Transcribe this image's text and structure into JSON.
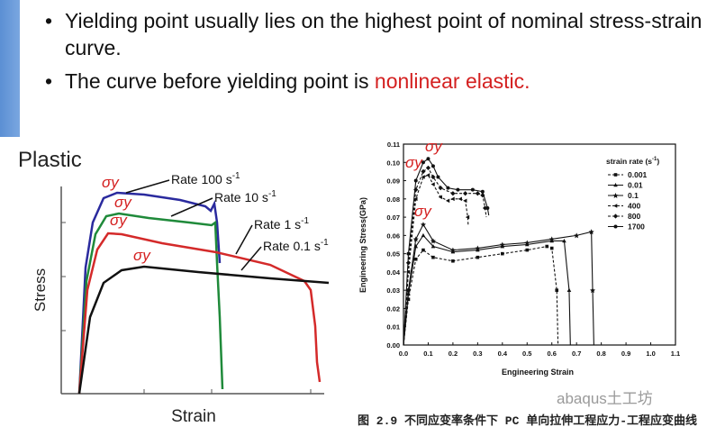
{
  "slide": {
    "bullets": [
      {
        "text": "Yielding point usually lies on the highest point of nominal stress-strain curve.",
        "highlight": ""
      },
      {
        "text": "The curve before yielding point is ",
        "highlight": "nonlinear elastic."
      }
    ],
    "highlight_color": "#d42020",
    "watermark": "abaqus土工坊",
    "caption": "图 2.9  不同应变率条件下 PC 单向拉伸工程应力-工程应变曲线"
  },
  "chart_data": [
    {
      "type": "line",
      "title": "Plastic",
      "xlabel": "Strain",
      "ylabel": "Stress",
      "yield_label": "σy",
      "series": [
        {
          "name": "Rate 100 s",
          "sup": "-1",
          "color": "#2a2a9e"
        },
        {
          "name": "Rate 10 s",
          "sup": "-1",
          "color": "#1f8a3a"
        },
        {
          "name": "Rate 1 s",
          "sup": "-1",
          "color": "#d42a2a"
        },
        {
          "name": "Rate 0.1 s",
          "sup": "-1",
          "color": "#111111"
        }
      ]
    },
    {
      "type": "line",
      "xlabel": "Engineering Strain",
      "ylabel": "Engineering Stress(GPa)",
      "xlim": [
        0.0,
        1.1
      ],
      "ylim": [
        0.0,
        0.11
      ],
      "xticks": [
        "0.0",
        "0.1",
        "0.2",
        "0.3",
        "0.4",
        "0.5",
        "0.6",
        "0.7",
        "0.8",
        "0.9",
        "1.0",
        "1.1"
      ],
      "yticks": [
        "0.00",
        "0.01",
        "0.02",
        "0.03",
        "0.04",
        "0.05",
        "0.06",
        "0.07",
        "0.08",
        "0.09",
        "0.10",
        "0.11"
      ],
      "legend_title": "strain rate (s",
      "legend_title_sup": "-1",
      "legend_placement": "top-right",
      "yield_label": "σy",
      "series": [
        {
          "name": "0.001",
          "x": [
            0.0,
            0.02,
            0.05,
            0.08,
            0.12,
            0.2,
            0.3,
            0.4,
            0.5,
            0.58,
            0.6,
            0.62,
            0.625
          ],
          "y": [
            0.0,
            0.025,
            0.047,
            0.052,
            0.048,
            0.046,
            0.048,
            0.05,
            0.052,
            0.054,
            0.053,
            0.03,
            0.0
          ]
        },
        {
          "name": "0.01",
          "x": [
            0.0,
            0.02,
            0.05,
            0.08,
            0.12,
            0.2,
            0.3,
            0.4,
            0.5,
            0.6,
            0.65,
            0.67,
            0.675
          ],
          "y": [
            0.0,
            0.028,
            0.054,
            0.06,
            0.054,
            0.051,
            0.052,
            0.054,
            0.055,
            0.057,
            0.057,
            0.03,
            0.0
          ]
        },
        {
          "name": "0.1",
          "x": [
            0.0,
            0.02,
            0.05,
            0.08,
            0.12,
            0.2,
            0.3,
            0.4,
            0.5,
            0.6,
            0.7,
            0.76,
            0.765,
            0.77
          ],
          "y": [
            0.0,
            0.03,
            0.058,
            0.066,
            0.057,
            0.052,
            0.053,
            0.055,
            0.056,
            0.058,
            0.06,
            0.062,
            0.03,
            0.0
          ]
        },
        {
          "name": "400",
          "x": [
            0.0,
            0.02,
            0.05,
            0.08,
            0.1,
            0.12,
            0.15,
            0.18,
            0.2,
            0.23,
            0.25,
            0.26,
            0.262
          ],
          "y": [
            0.0,
            0.04,
            0.08,
            0.092,
            0.093,
            0.088,
            0.081,
            0.079,
            0.08,
            0.08,
            0.079,
            0.07,
            0.065
          ]
        },
        {
          "name": "800",
          "x": [
            0.0,
            0.02,
            0.05,
            0.08,
            0.1,
            0.12,
            0.15,
            0.2,
            0.25,
            0.3,
            0.32,
            0.33,
            0.335
          ],
          "y": [
            0.0,
            0.045,
            0.085,
            0.095,
            0.097,
            0.092,
            0.086,
            0.083,
            0.083,
            0.083,
            0.082,
            0.075,
            0.07
          ]
        },
        {
          "name": "1700",
          "x": [
            0.0,
            0.02,
            0.05,
            0.08,
            0.1,
            0.12,
            0.14,
            0.18,
            0.22,
            0.28,
            0.32,
            0.34,
            0.345
          ],
          "y": [
            0.0,
            0.05,
            0.09,
            0.1,
            0.102,
            0.098,
            0.092,
            0.086,
            0.085,
            0.085,
            0.084,
            0.075,
            0.071
          ]
        }
      ]
    }
  ]
}
